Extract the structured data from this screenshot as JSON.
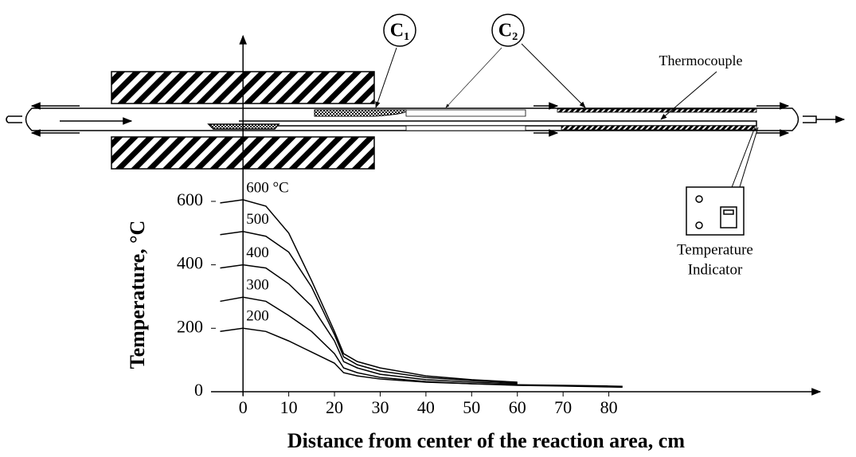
{
  "chart_data": {
    "type": "line",
    "xlabel": "Distance from center of the reaction area, cm",
    "ylabel": "Temperature, °C",
    "annotations": [
      "C₁",
      "C₂",
      "Thermocouple"
    ],
    "indicator_label": [
      "Temperature",
      "Indicator"
    ],
    "x": [
      -5,
      0,
      5,
      10,
      15,
      20,
      22,
      25,
      30,
      40,
      50,
      60,
      70,
      80,
      83
    ],
    "series": [
      {
        "name": "600 °C",
        "color": "#000000",
        "values": [
          595,
          605,
          585,
          500,
          350,
          190,
          120,
          95,
          75,
          50,
          38,
          30,
          null,
          null,
          null
        ]
      },
      {
        "name": "500",
        "color": "#000000",
        "values": [
          495,
          505,
          490,
          440,
          330,
          180,
          110,
          85,
          65,
          45,
          35,
          28,
          null,
          null,
          null
        ]
      },
      {
        "name": "400",
        "color": "#000000",
        "values": [
          390,
          400,
          390,
          340,
          270,
          160,
          95,
          75,
          55,
          38,
          30,
          25,
          null,
          null,
          null
        ]
      },
      {
        "name": "300",
        "color": "#000000",
        "values": [
          285,
          298,
          285,
          240,
          190,
          120,
          75,
          60,
          45,
          32,
          25,
          22,
          20,
          18,
          17
        ]
      },
      {
        "name": "200",
        "color": "#000000",
        "values": [
          190,
          200,
          190,
          160,
          125,
          90,
          60,
          50,
          40,
          30,
          25,
          20,
          18,
          15,
          14
        ]
      }
    ],
    "xlim": [
      -7,
      90
    ],
    "ylim": [
      0,
      650
    ],
    "xticks": [
      0,
      10,
      20,
      30,
      40,
      50,
      60,
      70,
      80
    ],
    "yticks": [
      0,
      200,
      400,
      600
    ]
  }
}
